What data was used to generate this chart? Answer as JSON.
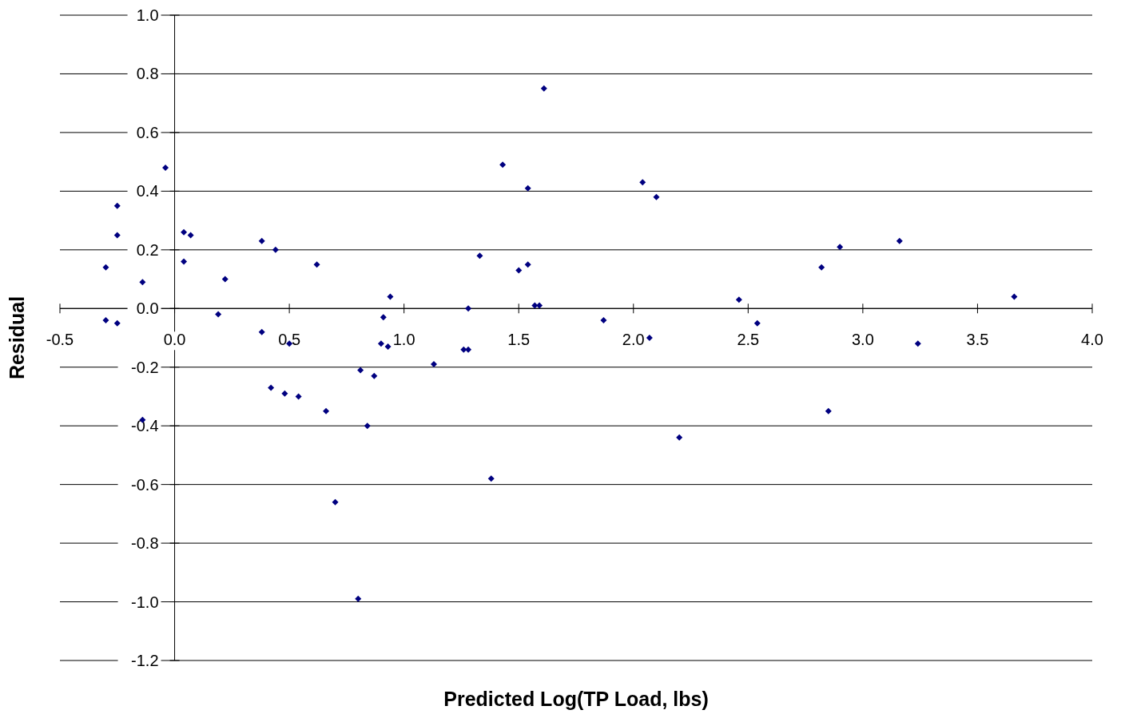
{
  "chart_data": {
    "type": "scatter",
    "xlabel": "Predicted Log(TP Load, lbs)",
    "ylabel": "Residual",
    "xlim": [
      -0.5,
      4.0
    ],
    "ylim": [
      -1.2,
      1.0
    ],
    "xticks": [
      {
        "value": -0.5,
        "label": "-0.5"
      },
      {
        "value": 0,
        "label": "0.0"
      },
      {
        "value": 0.5,
        "label": "0.5"
      },
      {
        "value": 1,
        "label": "1.0"
      },
      {
        "value": 1.5,
        "label": "1.5"
      },
      {
        "value": 2,
        "label": "2.0"
      },
      {
        "value": 2.5,
        "label": "2.5"
      },
      {
        "value": 3,
        "label": "3.0"
      },
      {
        "value": 3.5,
        "label": "3.5"
      },
      {
        "value": 4,
        "label": "4.0"
      }
    ],
    "yticks": [
      {
        "value": -1.2,
        "label": "-1.2"
      },
      {
        "value": -1,
        "label": "-1.0"
      },
      {
        "value": -0.8,
        "label": "-0.8"
      },
      {
        "value": -0.6,
        "label": "-0.6"
      },
      {
        "value": -0.4,
        "label": "-0.4"
      },
      {
        "value": -0.2,
        "label": "-0.2"
      },
      {
        "value": 0,
        "label": "0.0"
      },
      {
        "value": 0.2,
        "label": "0.2"
      },
      {
        "value": 0.4,
        "label": "0.4"
      },
      {
        "value": 0.6,
        "label": "0.6"
      },
      {
        "value": 0.8,
        "label": "0.8"
      },
      {
        "value": 1,
        "label": "1.0"
      }
    ],
    "grid": "y",
    "marker": "diamond",
    "series": [
      {
        "color": "#000080",
        "x": [
          -0.3,
          -0.3,
          -0.25,
          -0.25,
          -0.25,
          -0.14,
          -0.14,
          -0.04,
          0.04,
          0.04,
          0.07,
          0.19,
          0.22,
          0.38,
          0.38,
          0.42,
          0.44,
          0.48,
          0.5,
          0.54,
          0.62,
          0.66,
          0.7,
          0.8,
          0.81,
          0.84,
          0.87,
          0.9,
          0.91,
          0.93,
          0.94,
          1.13,
          1.26,
          1.28,
          1.28,
          1.33,
          1.38,
          1.43,
          1.5,
          1.54,
          1.54,
          1.57,
          1.59,
          1.61,
          1.87,
          2.04,
          2.07,
          2.1,
          2.2,
          2.46,
          2.54,
          2.82,
          2.85,
          2.9,
          3.16,
          3.24,
          3.66
        ],
        "values": [
          0.14,
          -0.04,
          0.35,
          0.25,
          -0.05,
          0.09,
          -0.38,
          0.48,
          0.26,
          0.16,
          0.25,
          -0.02,
          0.1,
          0.23,
          -0.08,
          -0.27,
          0.2,
          -0.29,
          -0.12,
          -0.3,
          0.15,
          -0.35,
          -0.66,
          -0.99,
          -0.21,
          -0.4,
          -0.23,
          -0.12,
          -0.03,
          -0.13,
          0.04,
          -0.19,
          -0.14,
          -0.14,
          0,
          0.18,
          -0.58,
          0.49,
          0.13,
          0.41,
          0.15,
          0.01,
          0.01,
          0.75,
          -0.04,
          0.43,
          -0.1,
          0.38,
          -0.44,
          0.03,
          -0.05,
          0.14,
          -0.35,
          0.21,
          0.23,
          -0.12,
          0.04
        ]
      }
    ]
  }
}
